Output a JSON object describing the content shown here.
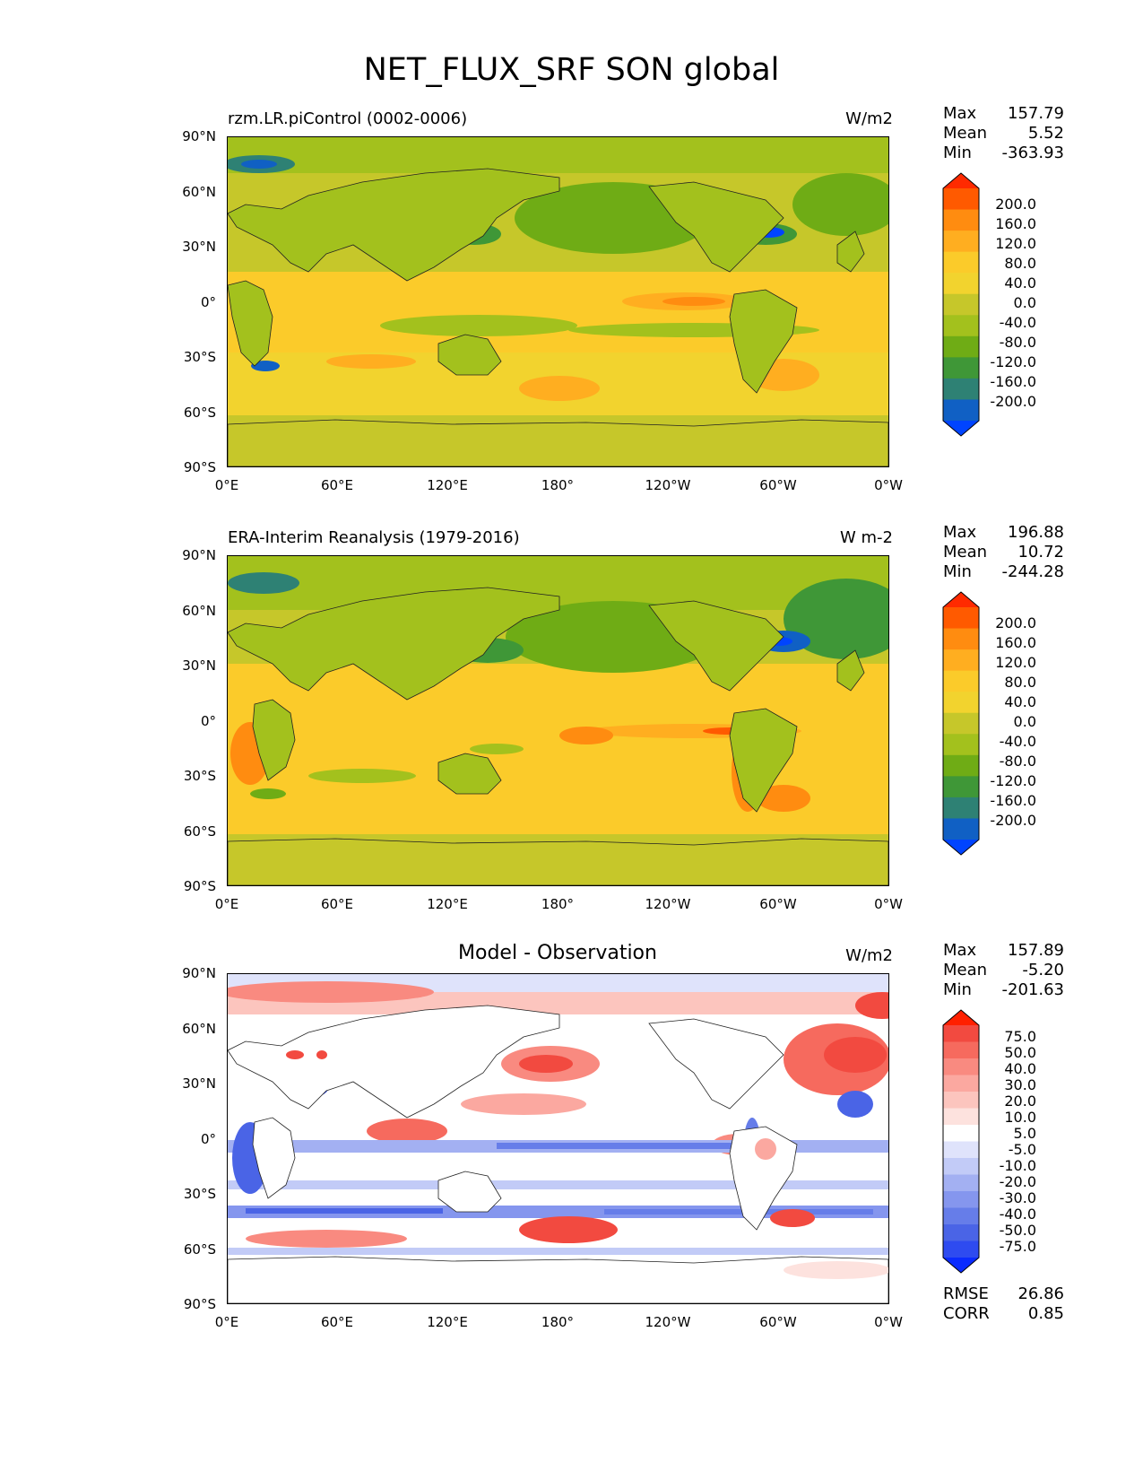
{
  "figure_title": "NET_FLUX_SRF SON global",
  "lat_ticks": [
    "90°N",
    "60°N",
    "30°N",
    "0°",
    "30°S",
    "60°S",
    "90°S"
  ],
  "lon_ticks": [
    "0°E",
    "60°E",
    "120°E",
    "180°",
    "120°W",
    "60°W",
    "0°W"
  ],
  "panels": [
    {
      "subtitle": "rzm.LR.piControl (0002-0006)",
      "units": "W/m2",
      "stats": {
        "max_label": "Max",
        "max": "157.79",
        "mean_label": "Mean",
        "mean": "5.52",
        "min_label": "Min",
        "min": "-363.93"
      },
      "colorbar_labels": [
        "200.0",
        "160.0",
        "120.0",
        "80.0",
        "40.0",
        "0.0",
        "-40.0",
        "-80.0",
        "-120.0",
        "-160.0",
        "-200.0"
      ],
      "colorbar_colors": [
        "#ff2a00",
        "#ff5a00",
        "#ff8c10",
        "#ffae20",
        "#fbcb2a",
        "#f2d32e",
        "#c6c72a",
        "#a3c11d",
        "#6fac15",
        "#3f9737",
        "#2e8174",
        "#1060c4",
        "#0044ff"
      ]
    },
    {
      "subtitle": "ERA-Interim Reanalysis (1979-2016)",
      "units": "W m-2",
      "stats": {
        "max_label": "Max",
        "max": "196.88",
        "mean_label": "Mean",
        "mean": "10.72",
        "min_label": "Min",
        "min": "-244.28"
      },
      "colorbar_labels": [
        "200.0",
        "160.0",
        "120.0",
        "80.0",
        "40.0",
        "0.0",
        "-40.0",
        "-80.0",
        "-120.0",
        "-160.0",
        "-200.0"
      ],
      "colorbar_colors": [
        "#ff2a00",
        "#ff5a00",
        "#ff8c10",
        "#ffae20",
        "#fbcb2a",
        "#f2d32e",
        "#c6c72a",
        "#a3c11d",
        "#6fac15",
        "#3f9737",
        "#2e8174",
        "#1060c4",
        "#0044ff"
      ]
    },
    {
      "title": "Model - Observation",
      "units": "W/m2",
      "stats": {
        "max_label": "Max",
        "max": "157.89",
        "mean_label": "Mean",
        "mean": "-5.20",
        "min_label": "Min",
        "min": "-201.63"
      },
      "colorbar_labels": [
        "75.0",
        "50.0",
        "40.0",
        "30.0",
        "20.0",
        "10.0",
        "5.0",
        "-5.0",
        "-10.0",
        "-20.0",
        "-30.0",
        "-40.0",
        "-50.0",
        "-75.0"
      ],
      "colorbar_colors": [
        "#ff2000",
        "#f24a40",
        "#f66a5e",
        "#f98a80",
        "#fba8a0",
        "#fcc5be",
        "#fde2de",
        "#ffffff",
        "#dfe3fb",
        "#c2cbf7",
        "#a3b0f2",
        "#8596ee",
        "#667de9",
        "#4a64e6",
        "#2e4bf0",
        "#0a2bff"
      ],
      "metrics": {
        "rmse_label": "RMSE",
        "rmse": "26.86",
        "corr_label": "CORR",
        "corr": "0.85"
      }
    }
  ]
}
